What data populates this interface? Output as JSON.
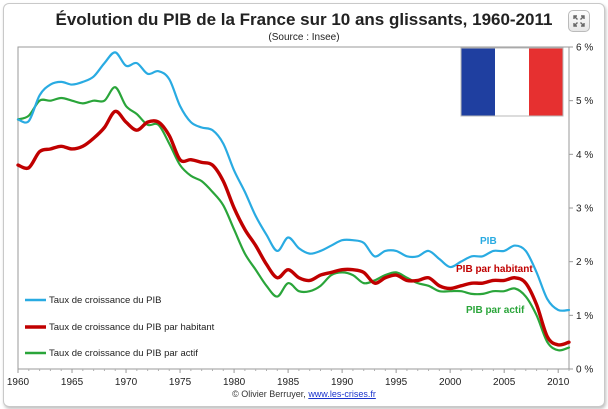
{
  "title": "Évolution du PIB de la France sur 10 ans glissants, 1960-2011",
  "subtitle": "(Source : Insee)",
  "credit": {
    "prefix": "© Olivier Berruyer, ",
    "link": "www.les-crises.fr"
  },
  "icons": {
    "expand": "expand-icon",
    "flag": "french-flag"
  },
  "colors": {
    "pib": "#29abe2",
    "pib_habitant": "#c00000",
    "pib_actif": "#2aa53a",
    "label_pib": "#29abe2",
    "label_habitant": "#c00000",
    "label_actif": "#2aa53a",
    "flag_blue": "#1f3fa0",
    "flag_white": "#ffffff",
    "flag_red": "#e63030"
  },
  "chart_data": {
    "type": "line",
    "title": "Évolution du PIB de la France sur 10 ans glissants, 1960-2011",
    "subtitle": "(Source : Insee)",
    "xlim": [
      1960,
      2011
    ],
    "ylim": [
      0,
      6
    ],
    "x_ticks": [
      1960,
      1965,
      1970,
      1975,
      1980,
      1985,
      1990,
      1995,
      2000,
      2005,
      2010
    ],
    "y_ticks": [
      0,
      1,
      2,
      3,
      4,
      5,
      6
    ],
    "y_tick_labels": [
      "0 %",
      "1 %",
      "2 %",
      "3 %",
      "4 %",
      "5 %",
      "6 %"
    ],
    "grid": false,
    "legend_position": "bottom-left",
    "series": [
      {
        "name": "Taux de croissance du PIB",
        "inline_label": "PIB",
        "color": "#29abe2",
        "x": [
          1960,
          1961,
          1962,
          1963,
          1964,
          1965,
          1966,
          1967,
          1968,
          1969,
          1970,
          1971,
          1972,
          1973,
          1974,
          1975,
          1976,
          1977,
          1978,
          1979,
          1980,
          1981,
          1982,
          1983,
          1984,
          1985,
          1986,
          1987,
          1988,
          1989,
          1990,
          1991,
          1992,
          1993,
          1994,
          1995,
          1996,
          1997,
          1998,
          1999,
          2000,
          2001,
          2002,
          2003,
          2004,
          2005,
          2006,
          2007,
          2008,
          2009,
          2010,
          2011
        ],
        "y": [
          4.65,
          4.62,
          5.1,
          5.3,
          5.35,
          5.3,
          5.35,
          5.45,
          5.7,
          5.9,
          5.65,
          5.7,
          5.5,
          5.55,
          5.4,
          4.9,
          4.6,
          4.5,
          4.45,
          4.2,
          3.7,
          3.3,
          2.85,
          2.5,
          2.2,
          2.45,
          2.25,
          2.15,
          2.2,
          2.3,
          2.4,
          2.4,
          2.35,
          2.1,
          2.2,
          2.2,
          2.1,
          2.1,
          2.2,
          2.05,
          1.9,
          2.0,
          2.1,
          2.1,
          2.2,
          2.2,
          2.3,
          2.2,
          1.8,
          1.3,
          1.1,
          1.1
        ]
      },
      {
        "name": "Taux de croissance du PIB par habitant",
        "inline_label": "PIB par habitant",
        "color": "#c00000",
        "x": [
          1960,
          1961,
          1962,
          1963,
          1964,
          1965,
          1966,
          1967,
          1968,
          1969,
          1970,
          1971,
          1972,
          1973,
          1974,
          1975,
          1976,
          1977,
          1978,
          1979,
          1980,
          1981,
          1982,
          1983,
          1984,
          1985,
          1986,
          1987,
          1988,
          1989,
          1990,
          1991,
          1992,
          1993,
          1994,
          1995,
          1996,
          1997,
          1998,
          1999,
          2000,
          2001,
          2002,
          2003,
          2004,
          2005,
          2006,
          2007,
          2008,
          2009,
          2010,
          2011
        ],
        "y": [
          3.8,
          3.75,
          4.05,
          4.1,
          4.15,
          4.1,
          4.15,
          4.3,
          4.5,
          4.8,
          4.6,
          4.45,
          4.6,
          4.6,
          4.35,
          3.9,
          3.9,
          3.85,
          3.8,
          3.5,
          3.0,
          2.6,
          2.3,
          1.95,
          1.7,
          1.85,
          1.7,
          1.65,
          1.75,
          1.8,
          1.85,
          1.85,
          1.8,
          1.6,
          1.7,
          1.75,
          1.65,
          1.65,
          1.7,
          1.55,
          1.5,
          1.55,
          1.6,
          1.6,
          1.65,
          1.65,
          1.7,
          1.6,
          1.2,
          0.6,
          0.45,
          0.5
        ]
      },
      {
        "name": "Taux de croissance du PIB par actif",
        "inline_label": "PIB par actif",
        "color": "#2aa53a",
        "x": [
          1960,
          1961,
          1962,
          1963,
          1964,
          1965,
          1966,
          1967,
          1968,
          1969,
          1970,
          1971,
          1972,
          1973,
          1974,
          1975,
          1976,
          1977,
          1978,
          1979,
          1980,
          1981,
          1982,
          1983,
          1984,
          1985,
          1986,
          1987,
          1988,
          1989,
          1990,
          1991,
          1992,
          1993,
          1994,
          1995,
          1996,
          1997,
          1998,
          1999,
          2000,
          2001,
          2002,
          2003,
          2004,
          2005,
          2006,
          2007,
          2008,
          2009,
          2010,
          2011
        ],
        "y": [
          4.65,
          4.72,
          5.0,
          5.0,
          5.05,
          5.0,
          4.95,
          5.0,
          5.0,
          5.25,
          4.9,
          4.75,
          4.55,
          4.55,
          4.2,
          3.8,
          3.6,
          3.5,
          3.3,
          3.05,
          2.6,
          2.15,
          1.85,
          1.55,
          1.35,
          1.6,
          1.45,
          1.45,
          1.55,
          1.75,
          1.8,
          1.75,
          1.6,
          1.65,
          1.75,
          1.8,
          1.7,
          1.6,
          1.55,
          1.45,
          1.45,
          1.45,
          1.4,
          1.4,
          1.45,
          1.45,
          1.5,
          1.35,
          1.0,
          0.5,
          0.35,
          0.4
        ]
      }
    ]
  }
}
